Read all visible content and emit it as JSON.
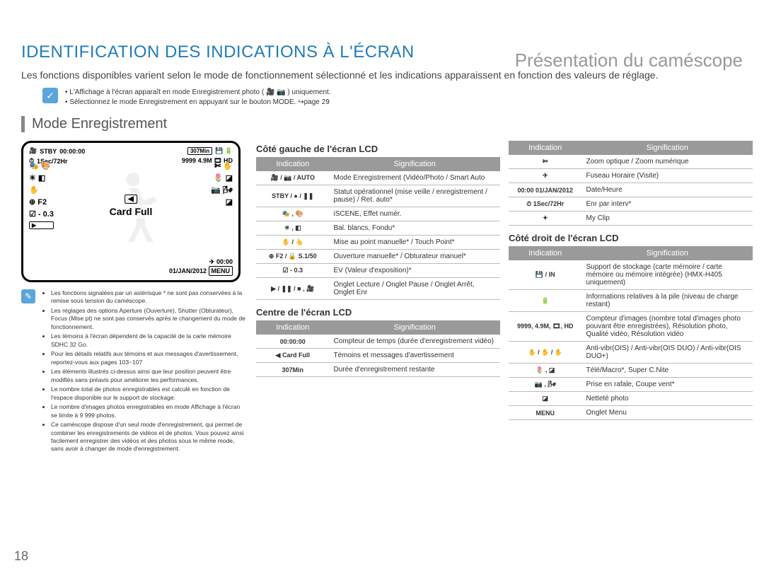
{
  "page_number": "18",
  "top_right": "Présentation du caméscope",
  "h1": "IDENTIFICATION DES INDICATIONS À L'ÉCRAN",
  "intro": "Les fonctions disponibles varient selon le mode de fonctionnement sélectionné et les indications apparaissent en fonction des valeurs de réglage.",
  "info1": "L'Affichage à l'écran apparaît en mode Enregistrement photo ( 🎥 📷 ) uniquement.",
  "info2": "Sélectionnez le mode Enregistrement en appuyant sur le bouton MODE. ↪page 29",
  "mode_title": "Mode Enregistrement",
  "lcd": {
    "stby": "STBY",
    "time": "00:00:00",
    "remain": "307Min",
    "interval": "1Sec/72Hr",
    "count": "9999",
    "f2": "F2",
    "ev": "- 0.3",
    "cardfull": "Card Full",
    "clock": "00:00",
    "date": "01/JAN/2012",
    "menu": "MENU"
  },
  "notes": [
    "Les fonctions signalées par un astérisque * ne sont pas conservées à la remise sous tension du caméscope.",
    "Les réglages des options Aperture (Ouverture), Shutter (Obturateur), Focus (Mise pt) ne sont pas conservés après le changement du mode de fonctionnement.",
    "Les témoins à l'écran dépendent de la capacité de la carte mémoire SDHC 32 Go.",
    "Pour les détails relatifs aux témoins et aux messages d'avertissement, reportez-vous aux pages 103~107",
    "Les éléments illustrés ci-dessus ainsi que leur position peuvent être modifiés sans préavis pour améliorer les performances.",
    "Le nombre total de photos enregistrables est calculé en fonction de l'espace disponible sur le support de stockage.",
    "Le nombre d'images photos enregistrables en mode Affichage à l'écran se limite à 9 999 photos.",
    "Ce caméscope dispose d'un seul mode d'enregistrement, qui permet de combiner les enregistrements de vidéos et de photos. Vous pouvez ainsi facilement enregistrer des vidéos et des photos sous le même mode, sans avoir à changer de mode d'enregistrement."
  ],
  "section_left_title": "Côté gauche de l'écran LCD",
  "section_center_title": "Centre de l'écran LCD",
  "section_right_title": "Côté droit de l'écran LCD",
  "col_ind": "Indication",
  "col_sig": "Signification",
  "table_left": [
    {
      "ind": "🎥 / 📷 / AUTO",
      "sig": "Mode Enregistrement (Vidéo/Photo / Smart Auto"
    },
    {
      "ind": "STBY / ● / ❚❚",
      "sig": "Statut opérationnel (mise veille / enregistrement / pause) / Ret. auto*"
    },
    {
      "ind": "🎭 , 🎨",
      "sig": "iSCENE, Effet numér."
    },
    {
      "ind": "☀ , ◧",
      "sig": "Bal. blancs, Fondu*"
    },
    {
      "ind": "✋ / 👆",
      "sig": "Mise au point manuelle* / Touch Point*"
    },
    {
      "ind": "⊕ F2 / 🔒 S.1/50",
      "sig": "Ouverture manuelle* / Obturateur manuel*"
    },
    {
      "ind": "☑ - 0.3",
      "sig": "EV (Valeur d'exposition)*"
    },
    {
      "ind": "▶ / ❚❚ / ■ , 🎥",
      "sig": "Onglet Lecture / Onglet Pause / Onglet Arrêt, Onglet Enr"
    }
  ],
  "table_center": [
    {
      "ind": "00:00:00",
      "sig": "Compteur de temps (durée d'enregistrement vidéo)"
    },
    {
      "ind": "◀  Card Full",
      "sig": "Témoins et messages d'avertissement"
    },
    {
      "ind": "307Min",
      "sig": "Durée d'enregistrement restante"
    }
  ],
  "table_top_right": [
    {
      "ind": "✄",
      "sig": "Zoom optique / Zoom numérique"
    },
    {
      "ind": "✈",
      "sig": "Fuseau Horaire (Visite)"
    },
    {
      "ind": "00:00 01/JAN/2012",
      "sig": "Date/Heure"
    },
    {
      "ind": "⏱ 1Sec/72Hr",
      "sig": "Enr par interv*"
    },
    {
      "ind": "✦",
      "sig": "My Clip"
    }
  ],
  "table_right": [
    {
      "ind": "💾 / IN",
      "sig": "Support de stockage (carte mémoire / carte mémoire ou mémoire intégrée) (HMX-H405 uniquement)"
    },
    {
      "ind": "🔋",
      "sig": "Informations relatives à la pile (niveau de charge restant)"
    },
    {
      "ind": "9999, 4.9M, 🎞, HD",
      "sig": "Compteur d'images (nombre total d'images photo pouvant être enregistrées), Résolution photo, Qualité vidéo, Résolution vidéo"
    },
    {
      "ind": "✋ / ✋ / ✋",
      "sig": "Anti-vibr(OIS) / Anti-vibr(OIS DUO) / Anti-vibr(OIS DUO+)"
    },
    {
      "ind": "🌷 , ◪",
      "sig": "Télé/Macro*, Super C.Nite"
    },
    {
      "ind": "📷 , 🌬",
      "sig": "Prise en rafale, Coupe vent*"
    },
    {
      "ind": "◪",
      "sig": "Netteté photo"
    },
    {
      "ind": "MENU",
      "sig": "Onglet Menu"
    }
  ]
}
